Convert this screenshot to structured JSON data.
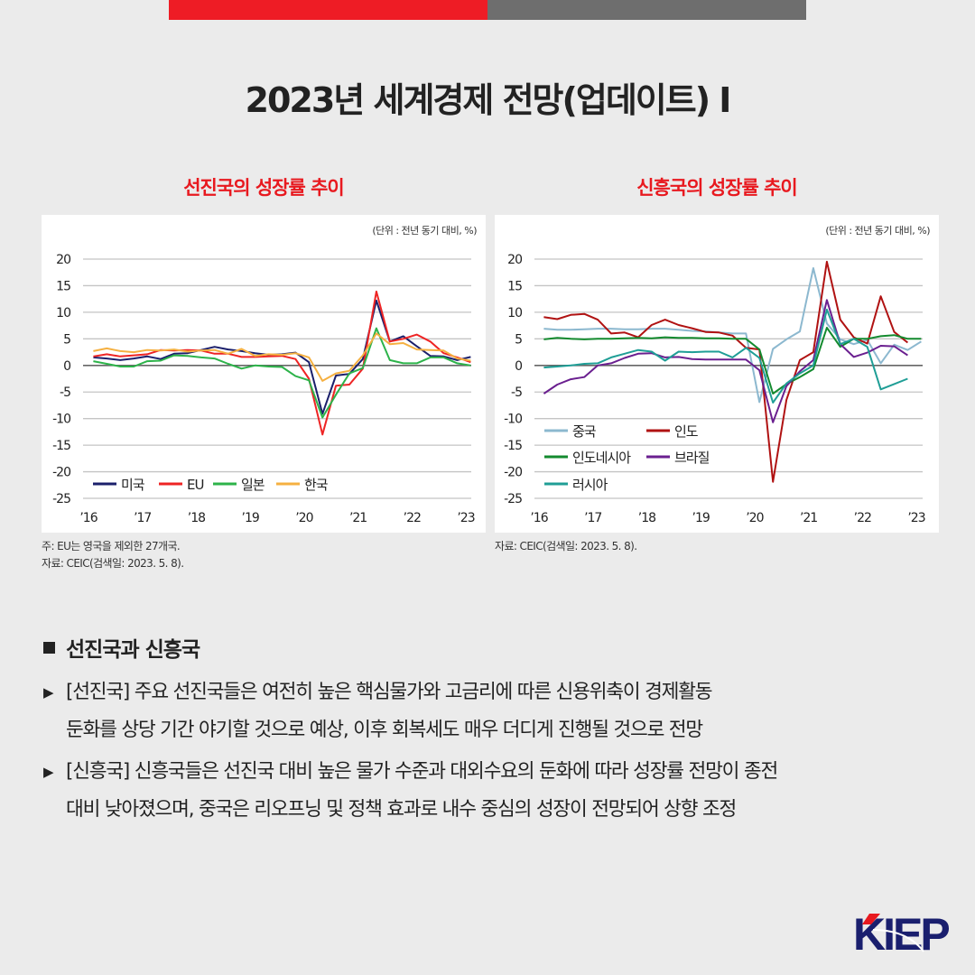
{
  "header": {
    "title": "2023년 세계경제 전망(업데이트) Ⅰ",
    "bar_colors": [
      "#ee1c25",
      "#6e6e6e"
    ]
  },
  "charts_meta": {
    "unit": "(단위 : 전년 동기 대비, %)",
    "left_note1": "주: EU는 영국을 제외한 27개국.",
    "left_note2": "자료: CEIC(검색일: 2023. 5. 8).",
    "right_note": "자료: CEIC(검색일: 2023. 5. 8)."
  },
  "chart_data": [
    {
      "type": "line",
      "title": "선진국의 성장률 추이",
      "ylim": [
        -25,
        20
      ],
      "yticks": [
        20,
        15,
        10,
        5,
        0,
        -5,
        -10,
        -15,
        -20,
        -25
      ],
      "xticks": [
        "’16",
        "’17",
        "’18",
        "’19",
        "’20",
        "’21",
        "’22",
        "’23"
      ],
      "x_start": "2016Q1",
      "grid": true,
      "legend": "bottom-left",
      "series": [
        {
          "name": "미국",
          "color": "#1b1f6b",
          "values": [
            1.5,
            1.3,
            1.0,
            1.3,
            1.7,
            1.2,
            2.2,
            2.3,
            2.9,
            3.5,
            3.0,
            2.7,
            2.3,
            2.0,
            2.1,
            2.4,
            0.6,
            -9.1,
            -1.9,
            -1.6,
            1.2,
            12.2,
            4.5,
            5.5,
            3.6,
            1.8,
            1.7,
            1.0,
            1.6
          ]
        },
        {
          "name": "EU",
          "color": "#ee2424",
          "values": [
            1.7,
            2.1,
            1.7,
            1.9,
            2.1,
            2.9,
            2.8,
            2.9,
            2.8,
            2.2,
            2.2,
            1.6,
            1.6,
            1.7,
            1.8,
            1.2,
            -2.5,
            -13.0,
            -3.8,
            -3.6,
            -0.6,
            13.9,
            4.5,
            5.0,
            5.8,
            4.5,
            2.3,
            1.5,
            0.6
          ]
        },
        {
          "name": "일본",
          "color": "#2db34a",
          "values": [
            0.8,
            0.3,
            -0.2,
            -0.2,
            0.8,
            0.9,
            1.9,
            1.8,
            1.5,
            1.3,
            0.3,
            -0.6,
            0.0,
            -0.2,
            -0.3,
            -2.0,
            -2.8,
            -9.8,
            -5.5,
            -1.5,
            -0.5,
            7.0,
            1.0,
            0.4,
            0.4,
            1.5,
            1.5,
            0.4,
            0.0
          ]
        },
        {
          "name": "한국",
          "color": "#f5b041",
          "values": [
            2.7,
            3.2,
            2.7,
            2.5,
            2.9,
            2.8,
            3.0,
            2.6,
            2.8,
            2.9,
            2.2,
            3.1,
            1.8,
            2.1,
            2.0,
            2.3,
            1.5,
            -2.9,
            -1.5,
            -1.0,
            1.9,
            6.0,
            4.0,
            4.2,
            3.0,
            2.9,
            2.8,
            1.3,
            0.9
          ]
        }
      ]
    },
    {
      "type": "line",
      "title": "신흥국의 성장률 추이",
      "ylim": [
        -25,
        20
      ],
      "yticks": [
        20,
        15,
        10,
        5,
        0,
        -5,
        -10,
        -15,
        -20,
        -25
      ],
      "xticks": [
        "’16",
        "’17",
        "’18",
        "’19",
        "’20",
        "’21",
        "’22",
        "’23"
      ],
      "x_start": "2016Q1",
      "grid": true,
      "legend": "bottom-left",
      "series": [
        {
          "name": "중국",
          "color": "#8cb8cf",
          "values": [
            6.9,
            6.7,
            6.7,
            6.8,
            6.9,
            6.9,
            6.8,
            6.8,
            6.9,
            6.9,
            6.7,
            6.5,
            6.4,
            6.2,
            6.0,
            6.0,
            -6.9,
            3.1,
            4.9,
            6.4,
            18.3,
            7.9,
            4.9,
            4.0,
            4.8,
            0.4,
            3.9,
            2.9,
            4.5
          ]
        },
        {
          "name": "인도",
          "color": "#b01212",
          "values": [
            9.1,
            8.7,
            9.5,
            9.7,
            8.6,
            6.0,
            6.2,
            5.3,
            7.6,
            8.6,
            7.6,
            7.0,
            6.3,
            6.2,
            5.6,
            3.3,
            3.0,
            -21.9,
            -6.5,
            1.0,
            2.5,
            19.5,
            8.6,
            5.3,
            4.1,
            13.0,
            6.3,
            4.3
          ]
        },
        {
          "name": "인도네시아",
          "color": "#138a2e",
          "values": [
            4.9,
            5.2,
            5.0,
            4.9,
            5.0,
            5.0,
            5.1,
            5.2,
            5.1,
            5.3,
            5.2,
            5.2,
            5.1,
            5.1,
            5.0,
            5.0,
            3.0,
            -5.3,
            -3.5,
            -2.2,
            -0.7,
            7.1,
            3.5,
            5.0,
            5.0,
            5.5,
            5.7,
            5.0,
            5.0
          ]
        },
        {
          "name": "브라질",
          "color": "#6a1f8f",
          "values": [
            -5.3,
            -3.6,
            -2.6,
            -2.2,
            0.0,
            0.4,
            1.4,
            2.2,
            2.3,
            1.5,
            1.6,
            1.2,
            1.1,
            1.1,
            1.1,
            1.1,
            -0.9,
            -10.7,
            -3.9,
            -1.1,
            1.0,
            12.3,
            4.0,
            1.6,
            2.4,
            3.7,
            3.6,
            1.9
          ]
        },
        {
          "name": "러시아",
          "color": "#1f9e96",
          "values": [
            -0.4,
            -0.2,
            0.0,
            0.3,
            0.4,
            1.5,
            2.2,
            2.9,
            2.6,
            0.9,
            2.6,
            2.5,
            2.6,
            2.6,
            1.5,
            3.3,
            1.4,
            -7.0,
            -3.4,
            -1.5,
            0.0,
            10.5,
            4.0,
            5.0,
            3.5,
            -4.5,
            -3.5,
            -2.5
          ]
        }
      ]
    }
  ],
  "body": {
    "heading": "선진국과 신흥국",
    "items": [
      {
        "lines": [
          "[선진국] 주요 선진국들은 여전히 높은 핵심물가와 고금리에 따른 신용위축이 경제활동",
          "둔화를 상당 기간 야기할 것으로 예상, 이후 회복세도 매우 더디게 진행될 것으로 전망"
        ]
      },
      {
        "lines": [
          "[신흥국] 신흥국들은 선진국 대비 높은 물가 수준과 대외수요의 둔화에 따라 성장률 전망이 종전",
          "대비 낮아졌으며, 중국은 리오프닝 및 정책 효과로 내수 중심의 성장이 전망되어 상향 조정"
        ]
      }
    ]
  },
  "logo": {
    "text": "KIEP",
    "color": "#1a1f6e",
    "accent": "#e8191f"
  }
}
